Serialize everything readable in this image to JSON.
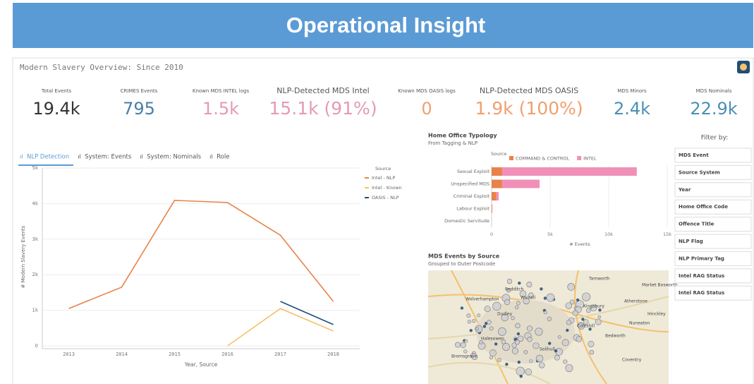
{
  "header": {
    "title": "Operational Insight"
  },
  "dashboard": {
    "title": "Modern Slavery Overview: Since 2010",
    "kpis": [
      {
        "label": "Total Events",
        "value": "19.4k",
        "color": "#333333"
      },
      {
        "label": "CRIMES Events",
        "value": "795",
        "color": "#4a7fa5"
      },
      {
        "label": "Known MDS INTEL logs",
        "value": "1.5k",
        "color": "#e59ab6"
      },
      {
        "label": "NLP-Detected MDS Intel",
        "value": "15.1k (91%)",
        "color": "#e59ab6"
      },
      {
        "label": "Known MDS OASIS logs",
        "value": "0",
        "color": "#f0a070"
      },
      {
        "label": "NLP-Detected MDS OASIS",
        "value": "1.9k (100%)",
        "color": "#f0a070"
      },
      {
        "label": "MDS Minors",
        "value": "2.4k",
        "color": "#4a8fb5"
      },
      {
        "label": "MDS Nominals",
        "value": "22.9k",
        "color": "#4a8fb5"
      }
    ],
    "tabs": [
      "NLP Detection",
      "System: Events",
      "System: Nominals",
      "Role"
    ],
    "filter_title": "Filter by:",
    "filters": [
      "MDS Event",
      "Source System",
      "Year",
      "Home Office Code",
      "Offence Title",
      "NLP Flag",
      "NLP Primary Tag",
      "Intel RAG Status",
      "Intel RAG Status"
    ],
    "map": {
      "title": "MDS Events by Source",
      "subtitle": "Grouped to Outer Postcode",
      "places": [
        "Tamworth",
        "Market Bosworth",
        "Atherstone",
        "Kingsbury",
        "Hinckley",
        "Nuneaton",
        "Coleshill",
        "Bedworth",
        "Coventry",
        "Walsall",
        "Wolverhampton",
        "Dudley",
        "Halesowen",
        "Solihull",
        "Bromsgrove",
        "Redditch"
      ]
    }
  },
  "chart_data": [
    {
      "type": "line",
      "xlabel": "Year, Source",
      "ylabel": "# Modern Slavery Events",
      "legend_title": "Source",
      "categories": [
        "2013",
        "2014",
        "2015",
        "2016",
        "2017",
        "2018"
      ],
      "series": [
        {
          "name": "Intel - NLP",
          "color": "#e8824a",
          "values": [
            1050,
            1650,
            4090,
            4030,
            3110,
            1250
          ]
        },
        {
          "name": "Intel - Known",
          "color": "#f5c26b",
          "values": [
            null,
            null,
            null,
            0,
            1050,
            420
          ]
        },
        {
          "name": "OASIS - NLP",
          "color": "#1f4e79",
          "values": [
            null,
            null,
            null,
            null,
            1250,
            600
          ]
        }
      ],
      "ylim": [
        0,
        5000
      ],
      "yticks": [
        0,
        {
          "value": 1000,
          "label": "1k"
        },
        {
          "value": 2000,
          "label": "2k"
        },
        {
          "value": 3000,
          "label": "3k"
        },
        {
          "value": 4000,
          "label": "4k"
        },
        {
          "value": 5000,
          "label": "5k"
        }
      ],
      "grid": true
    },
    {
      "type": "hbar_stacked",
      "title": "Home Office Typology",
      "subtitle": "From Tagging & NLP",
      "legend_title": "Source",
      "xlabel": "# Events",
      "categories": [
        "Sexual Exploit",
        "Unspecified MDS",
        "Criminal Exploit",
        "Labour Exploit",
        "Domestic Servitude"
      ],
      "series": [
        {
          "name": "COMMAND & CONTROL",
          "color": "#e8824a",
          "values": [
            900,
            900,
            400,
            50,
            0
          ]
        },
        {
          "name": "INTEL",
          "color": "#f090b8",
          "values": [
            11500,
            3200,
            200,
            20,
            0
          ]
        }
      ],
      "xlim": [
        0,
        15000
      ],
      "xticks": [
        0,
        {
          "value": 5000,
          "label": "5k"
        },
        {
          "value": 10000,
          "label": "10k"
        },
        {
          "value": 15000,
          "label": "15k"
        }
      ],
      "grid": true
    }
  ]
}
